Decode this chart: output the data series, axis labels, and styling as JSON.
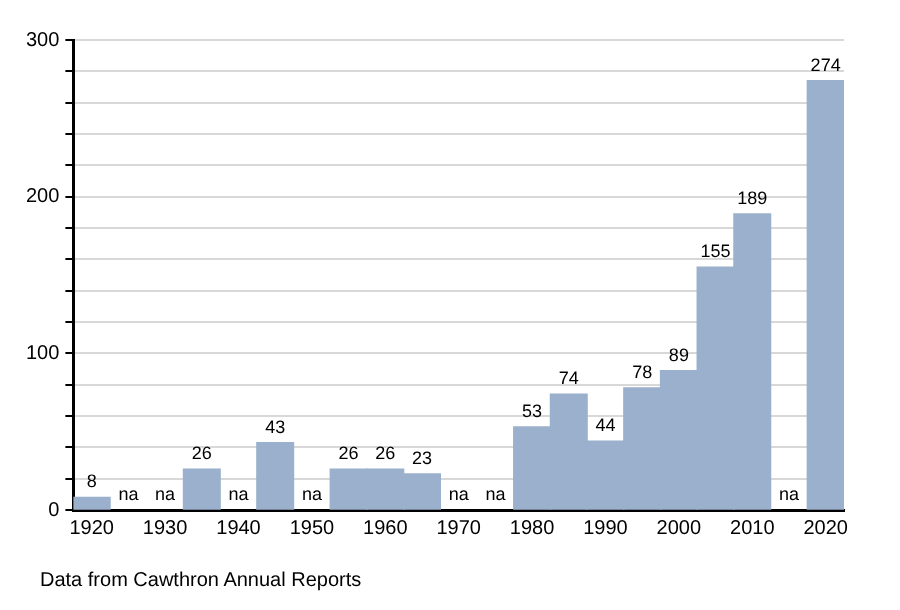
{
  "chart_data": {
    "type": "bar",
    "categories": [
      "1920",
      null,
      "1930",
      null,
      "1940",
      null,
      "1950",
      null,
      "1960",
      null,
      "1970",
      null,
      "1980",
      null,
      "1990",
      null,
      "2000",
      null,
      "2010",
      null,
      "2020"
    ],
    "values": [
      8,
      null,
      null,
      26,
      null,
      43,
      null,
      26,
      26,
      23,
      null,
      null,
      53,
      74,
      44,
      78,
      89,
      155,
      189,
      null,
      274
    ],
    "value_labels": [
      "8",
      "na",
      "na",
      "26",
      "na",
      "43",
      "na",
      "26",
      "26",
      "23",
      "na",
      "na",
      "53",
      "74",
      "44",
      "78",
      "89",
      "155",
      "189",
      "na",
      "274"
    ],
    "color": "#9ab0cc",
    "ylim": [
      0,
      300
    ],
    "yticks": [
      0,
      {
        "value": 20,
        "label": null
      },
      {
        "value": 40,
        "label": null
      },
      {
        "value": 60,
        "label": null
      },
      {
        "value": 80,
        "label": null
      },
      100,
      {
        "value": 120,
        "label": null
      },
      {
        "value": 140,
        "label": null
      },
      {
        "value": 160,
        "label": null
      },
      {
        "value": 180,
        "label": null
      },
      200,
      {
        "value": 220,
        "label": null
      },
      {
        "value": 240,
        "label": null
      },
      {
        "value": 260,
        "label": null
      },
      {
        "value": 280,
        "label": null
      },
      300
    ],
    "grid": "y",
    "legend": false,
    "annotations": [
      "Data from Cawthron Annual Reports"
    ]
  }
}
